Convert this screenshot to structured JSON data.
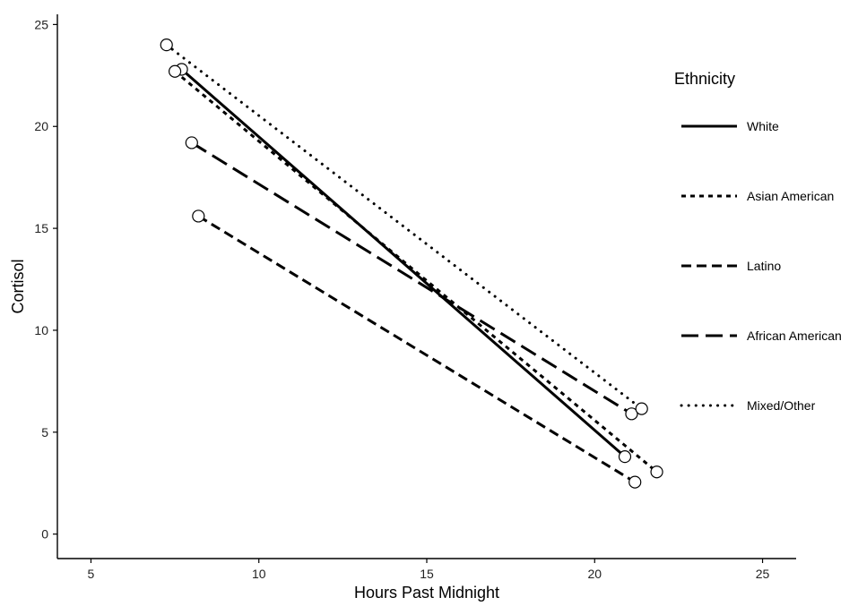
{
  "chart_data": {
    "type": "line",
    "title": "",
    "xlabel": "Hours Past Midnight",
    "ylabel": "Cortisol",
    "xlim": [
      4,
      26
    ],
    "ylim": [
      -1.2,
      25.5
    ],
    "xticks": [
      5,
      10,
      15,
      20,
      25
    ],
    "yticks": [
      0,
      5,
      10,
      15,
      20,
      25
    ],
    "grid": false,
    "legend": {
      "title": "Ethnicity",
      "position": "right"
    },
    "series": [
      {
        "name": "White",
        "dash": "solid",
        "x": [
          7.7,
          20.9
        ],
        "y": [
          22.8,
          3.8
        ]
      },
      {
        "name": "Asian American",
        "dash": "short-dash",
        "x": [
          7.5,
          21.85
        ],
        "y": [
          22.7,
          3.05
        ]
      },
      {
        "name": "Latino",
        "dash": "dash",
        "x": [
          8.2,
          21.2
        ],
        "y": [
          15.6,
          2.55
        ]
      },
      {
        "name": "African American",
        "dash": "long-dash",
        "x": [
          8.0,
          21.1
        ],
        "y": [
          19.2,
          5.9
        ]
      },
      {
        "name": "Mixed/Other",
        "dash": "dot",
        "x": [
          7.25,
          21.4
        ],
        "y": [
          24.0,
          6.15
        ]
      }
    ]
  }
}
